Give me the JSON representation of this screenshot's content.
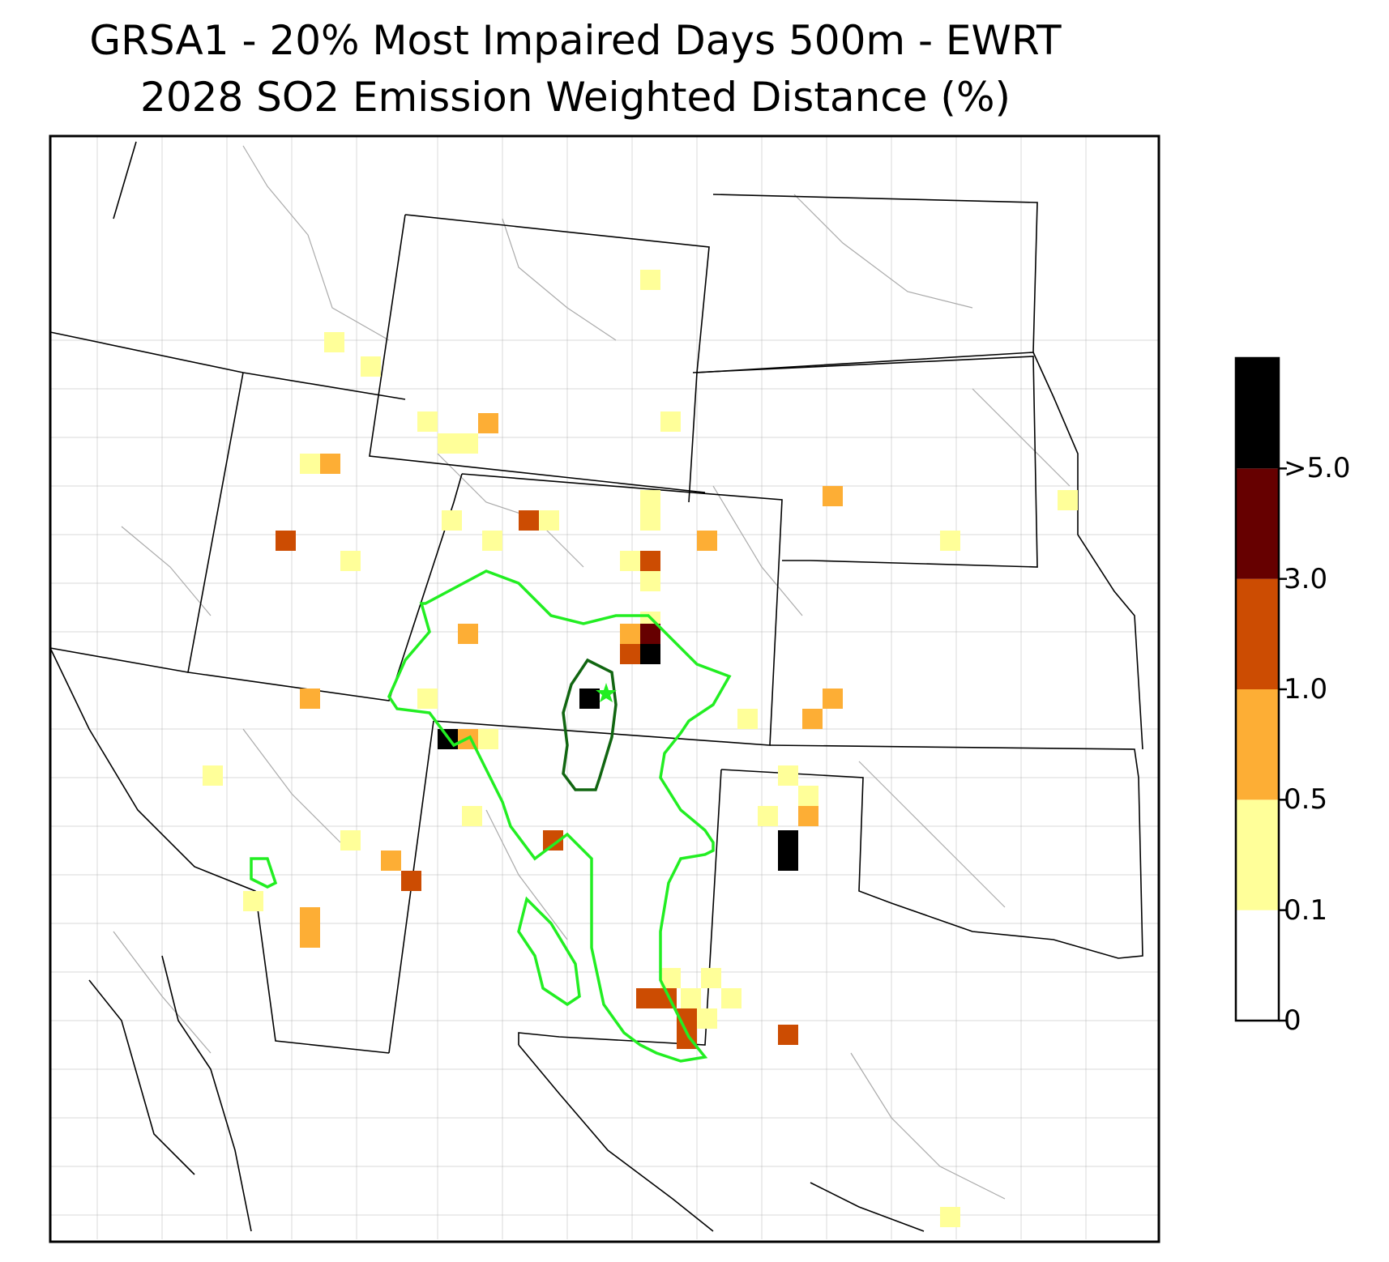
{
  "title": {
    "line1": "GRSA1 - 20% Most Impaired Days 500m - EWRT",
    "line2": "2028 SO2 Emission Weighted Distance (%)"
  },
  "colorbar": {
    "ticks": [
      "0",
      "0.1",
      "0.5",
      "1.0",
      "3.0",
      ">5.0"
    ],
    "bins": [
      {
        "range": "0 - 0.1",
        "color": "#ffffff"
      },
      {
        "range": "0.1 - 0.5",
        "color": "#ffff99"
      },
      {
        "range": "0.5 - 1.0",
        "color": "#fdae35"
      },
      {
        "range": "1.0 - 3.0",
        "color": "#cc4c02"
      },
      {
        "range": "3.0 - 5.0",
        "color": "#660000"
      },
      {
        "range": ">5.0",
        "color": "#000000"
      }
    ]
  },
  "colors": {
    "state_border": "#000000",
    "county_border": "#aaaaaa",
    "outer_contour": "#22ee22",
    "inner_contour": "#116611",
    "site_marker": "#22ee22"
  },
  "site_marker": {
    "icon": "star-icon",
    "label": "GRSA1"
  }
}
